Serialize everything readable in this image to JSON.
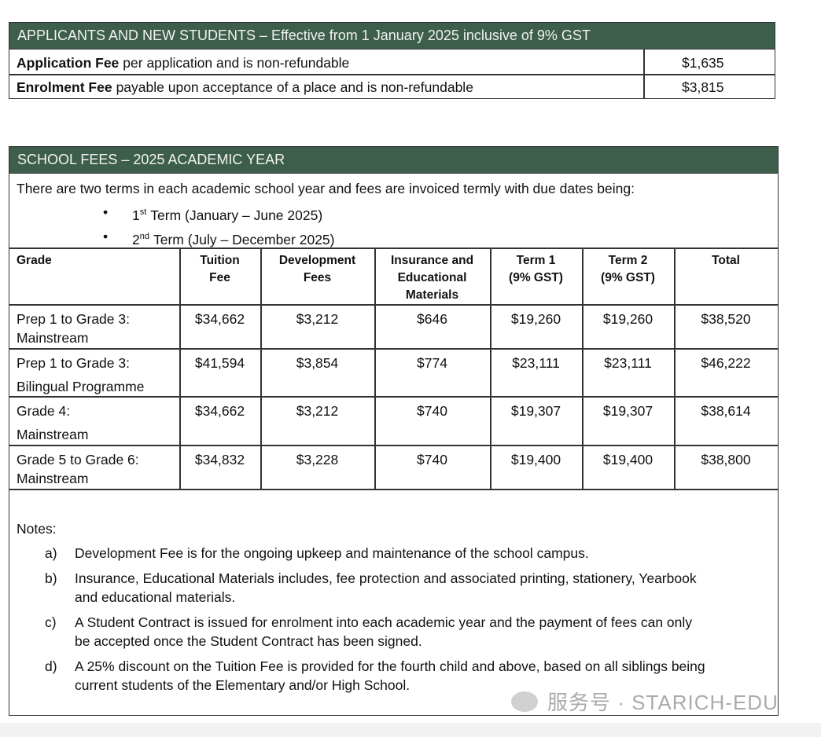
{
  "applicants": {
    "title": "APPLICANTS AND NEW STUDENTS – Effective from 1 January 2025 inclusive of 9% GST",
    "rows": [
      {
        "name": "Application Fee",
        "desc": "per application and is non-refundable",
        "amount": "$1,635"
      },
      {
        "name": "Enrolment Fee",
        "desc": "payable upon acceptance of a place and is non-refundable",
        "amount": "$3,815"
      }
    ]
  },
  "school_fees": {
    "title": "SCHOOL FEES – 2025 ACADEMIC YEAR",
    "intro": "There are two terms in each academic school year and fees are invoiced termly with due dates being:",
    "terms": [
      {
        "ordinal": "1",
        "suffix": "st",
        "text": "Term (January – June 2025)"
      },
      {
        "ordinal": "2",
        "suffix": "nd",
        "text": "Term (July – December 2025)"
      }
    ],
    "table": {
      "headers": [
        [
          "Grade"
        ],
        [
          "Tuition",
          "Fee"
        ],
        [
          "Development",
          "Fees"
        ],
        [
          "Insurance and",
          "Educational",
          "Materials"
        ],
        [
          "Term 1",
          "(9% GST)"
        ],
        [
          "Term 2",
          "(9% GST)"
        ],
        [
          "Total"
        ]
      ],
      "rows": [
        [
          [
            "Prep 1 to Grade 3:",
            "Mainstream"
          ],
          "$34,662",
          "$3,212",
          "$646",
          "$19,260",
          "$19,260",
          "$38,520"
        ],
        [
          [
            "Prep 1 to Grade 3:",
            "Bilingual Programme"
          ],
          "$41,594",
          "$3,854",
          "$774",
          "$23,111",
          "$23,111",
          "$46,222"
        ],
        [
          [
            "Grade 4:",
            "Mainstream"
          ],
          "$34,662",
          "$3,212",
          "$740",
          "$19,307",
          "$19,307",
          "$38,614"
        ],
        [
          [
            "Grade 5 to Grade 6:",
            "Mainstream"
          ],
          "$34,832",
          "$3,228",
          "$740",
          "$19,400",
          "$19,400",
          "$38,800"
        ]
      ]
    },
    "notes_label": "Notes:",
    "notes": [
      {
        "marker": "a)",
        "lines": [
          "Development Fee is for the ongoing upkeep and maintenance of the school campus."
        ]
      },
      {
        "marker": "b)",
        "lines": [
          "Insurance, Educational Materials includes, fee protection and associated printing, stationery, Yearbook",
          "and educational materials."
        ]
      },
      {
        "marker": "c)",
        "lines": [
          "A Student Contract is issued for enrolment into each academic year and the payment of fees can only",
          "be accepted once the Student Contract has been signed."
        ]
      },
      {
        "marker": "d)",
        "lines": [
          "A 25% discount on the Tuition Fee is provided for the fourth child and above, based on all siblings being",
          "current students of the Elementary and/or High School."
        ]
      }
    ]
  },
  "watermark": "服务号 · STARICH-EDU"
}
